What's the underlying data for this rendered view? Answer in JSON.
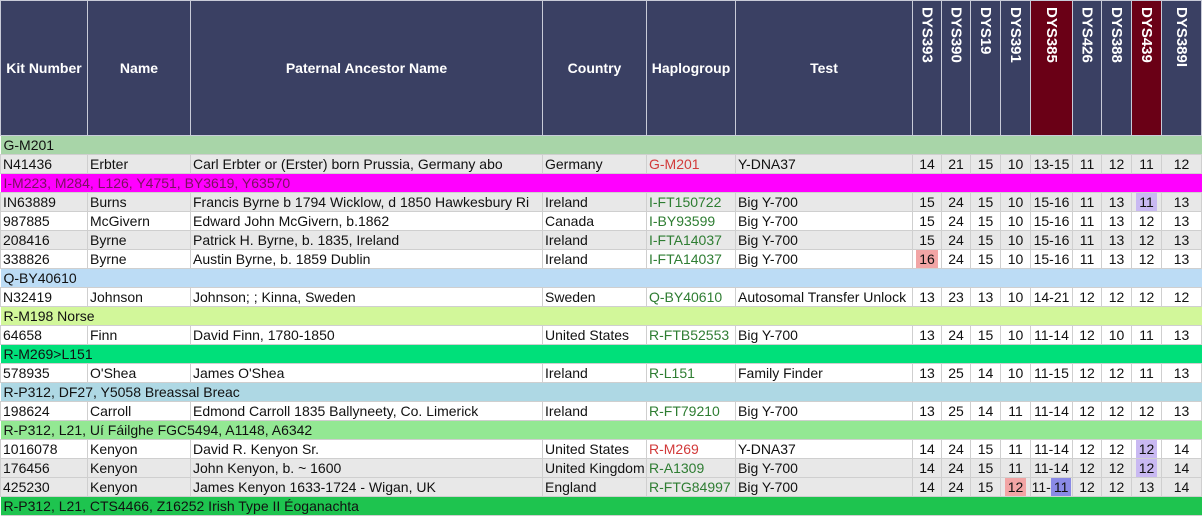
{
  "headers": {
    "kit": "Kit Number",
    "name": "Name",
    "ancestor": "Paternal Ancestor Name",
    "country": "Country",
    "haplogroup": "Haplogroup",
    "test": "Test",
    "markers": [
      "DYS393",
      "DYS390",
      "DYS19",
      "DYS391",
      "DYS385",
      "DYS426",
      "DYS388",
      "DYS439",
      "DYS389I"
    ]
  },
  "colors": {
    "header_bg": "#3a4063",
    "header_dark": "#6a0016",
    "highlight_pink": "#f2a5a5",
    "highlight_lavender": "#c9b9f2",
    "highlight_blue": "#8a8ae6"
  },
  "groups": [
    {
      "label": "G-M201",
      "color": "#a8d5a8",
      "rows": [
        {
          "kit": "N41436",
          "name": "Erbter",
          "ancestor": "Carl Erbter or (Erster) born Prussia, Germany abo",
          "country": "Germany",
          "haplogroup": "G-M201",
          "hg_color": "red",
          "test": "Y-DNA37",
          "markers": [
            "14",
            "21",
            "15",
            "10",
            "13-15",
            "11",
            "12",
            "11",
            "12"
          ]
        }
      ]
    },
    {
      "label": "I-M223, M284, L126, Y4751, BY3619, Y63570",
      "color": "#ff00ff",
      "rows": [
        {
          "kit": "IN63889",
          "name": "Burns",
          "ancestor": "Francis Byrne b 1794 Wicklow, d 1850 Hawkesbury Ri",
          "country": "Ireland",
          "haplogroup": "I-FT150722",
          "hg_color": "green",
          "test": "Big Y-700",
          "markers": [
            "15",
            "24",
            "15",
            "10",
            "15-16",
            "11",
            "13",
            "11",
            "13"
          ],
          "highlights": {
            "7": "lav"
          }
        },
        {
          "kit": "987885",
          "name": "McGivern",
          "ancestor": "Edward John McGivern, b.1862",
          "country": "Canada",
          "haplogroup": "I-BY93599",
          "hg_color": "green",
          "test": "Big Y-700",
          "markers": [
            "15",
            "24",
            "15",
            "10",
            "15-16",
            "11",
            "13",
            "12",
            "13"
          ]
        },
        {
          "kit": "208416",
          "name": "Byrne",
          "ancestor": "Patrick H. Byrne, b. 1835, Ireland",
          "country": "Ireland",
          "haplogroup": "I-FTA14037",
          "hg_color": "green",
          "test": "Big Y-700",
          "markers": [
            "15",
            "24",
            "15",
            "10",
            "15-16",
            "11",
            "13",
            "12",
            "13"
          ]
        },
        {
          "kit": "338826",
          "name": "Byrne",
          "ancestor": "Austin Byrne, b. 1859 Dublin",
          "country": "Ireland",
          "haplogroup": "I-FTA14037",
          "hg_color": "green",
          "test": "Big Y-700",
          "markers": [
            "16",
            "24",
            "15",
            "10",
            "15-16",
            "11",
            "13",
            "12",
            "13"
          ],
          "highlights": {
            "0": "pink"
          }
        }
      ]
    },
    {
      "label": "Q-BY40610",
      "color": "#bcdcf5",
      "rows": [
        {
          "kit": "N32419",
          "name": "Johnson",
          "ancestor": "Johnson; ; Kinna, Sweden",
          "country": "Sweden",
          "haplogroup": "Q-BY40610",
          "hg_color": "green",
          "test": "Autosomal Transfer Unlock",
          "markers": [
            "13",
            "23",
            "13",
            "10",
            "14-21",
            "12",
            "12",
            "12",
            "12"
          ]
        }
      ]
    },
    {
      "label": "R-M198 Norse",
      "color": "#d2f79a",
      "rows": [
        {
          "kit": "64658",
          "name": "Finn",
          "ancestor": "David Finn, 1780-1850",
          "country": "United States",
          "haplogroup": "R-FTB52553",
          "hg_color": "green",
          "test": "Big Y-700",
          "markers": [
            "13",
            "24",
            "15",
            "10",
            "11-14",
            "12",
            "10",
            "11",
            "13"
          ]
        }
      ]
    },
    {
      "label": "R-M269>L151",
      "color": "#00e07a",
      "rows": [
        {
          "kit": "578935",
          "name": "O'Shea",
          "ancestor": "James O'Shea",
          "country": "Ireland",
          "haplogroup": "R-L151",
          "hg_color": "green",
          "test": "Family Finder",
          "markers": [
            "13",
            "25",
            "14",
            "10",
            "11-15",
            "12",
            "12",
            "11",
            "13"
          ]
        }
      ]
    },
    {
      "label": "R-P312, DF27, Y5058 Breassal Breac",
      "color": "#aed8e4",
      "rows": [
        {
          "kit": "198624",
          "name": "Carroll",
          "ancestor": "Edmond Carroll 1835 Ballyneety, Co. Limerick",
          "country": "Ireland",
          "haplogroup": "R-FT79210",
          "hg_color": "green",
          "test": "Big Y-700",
          "markers": [
            "13",
            "25",
            "14",
            "11",
            "11-14",
            "12",
            "12",
            "12",
            "13"
          ]
        }
      ]
    },
    {
      "label": "R-P312, L21, Uí Fáilghe FGC5494, A1148, A6342",
      "color": "#93e893",
      "rows": [
        {
          "kit": "1016078",
          "name": "Kenyon",
          "ancestor": "David R. Kenyon Sr.",
          "country": "United States",
          "haplogroup": "R-M269",
          "hg_color": "red",
          "test": "Y-DNA37",
          "markers": [
            "14",
            "24",
            "15",
            "11",
            "11-14",
            "12",
            "12",
            "12",
            "14"
          ],
          "highlights": {
            "7": "lav"
          }
        },
        {
          "kit": "176456",
          "name": "Kenyon",
          "ancestor": "John Kenyon, b. ~ 1600",
          "country": "United Kingdom",
          "haplogroup": "R-A1309",
          "hg_color": "green",
          "test": "Big Y-700",
          "markers": [
            "14",
            "24",
            "15",
            "11",
            "11-14",
            "12",
            "12",
            "12",
            "14"
          ],
          "highlights": {
            "7": "lav"
          }
        },
        {
          "kit": "425230",
          "name": "Kenyon",
          "ancestor": "James Kenyon 1633-1724 - Wigan, UK",
          "country": "England",
          "haplogroup": "R-FTG84997",
          "hg_color": "green",
          "test": "Big Y-700",
          "markers": [
            "14",
            "24",
            "15",
            "12",
            "11-11",
            "12",
            "12",
            "13",
            "14"
          ],
          "highlights": {
            "3": "pink",
            "4b": "blue"
          }
        }
      ]
    },
    {
      "label": "R-P312, L21, CTS4466, Z16252 Irish Type II Éoganachta",
      "color": "#1ec44f",
      "rows": []
    }
  ]
}
